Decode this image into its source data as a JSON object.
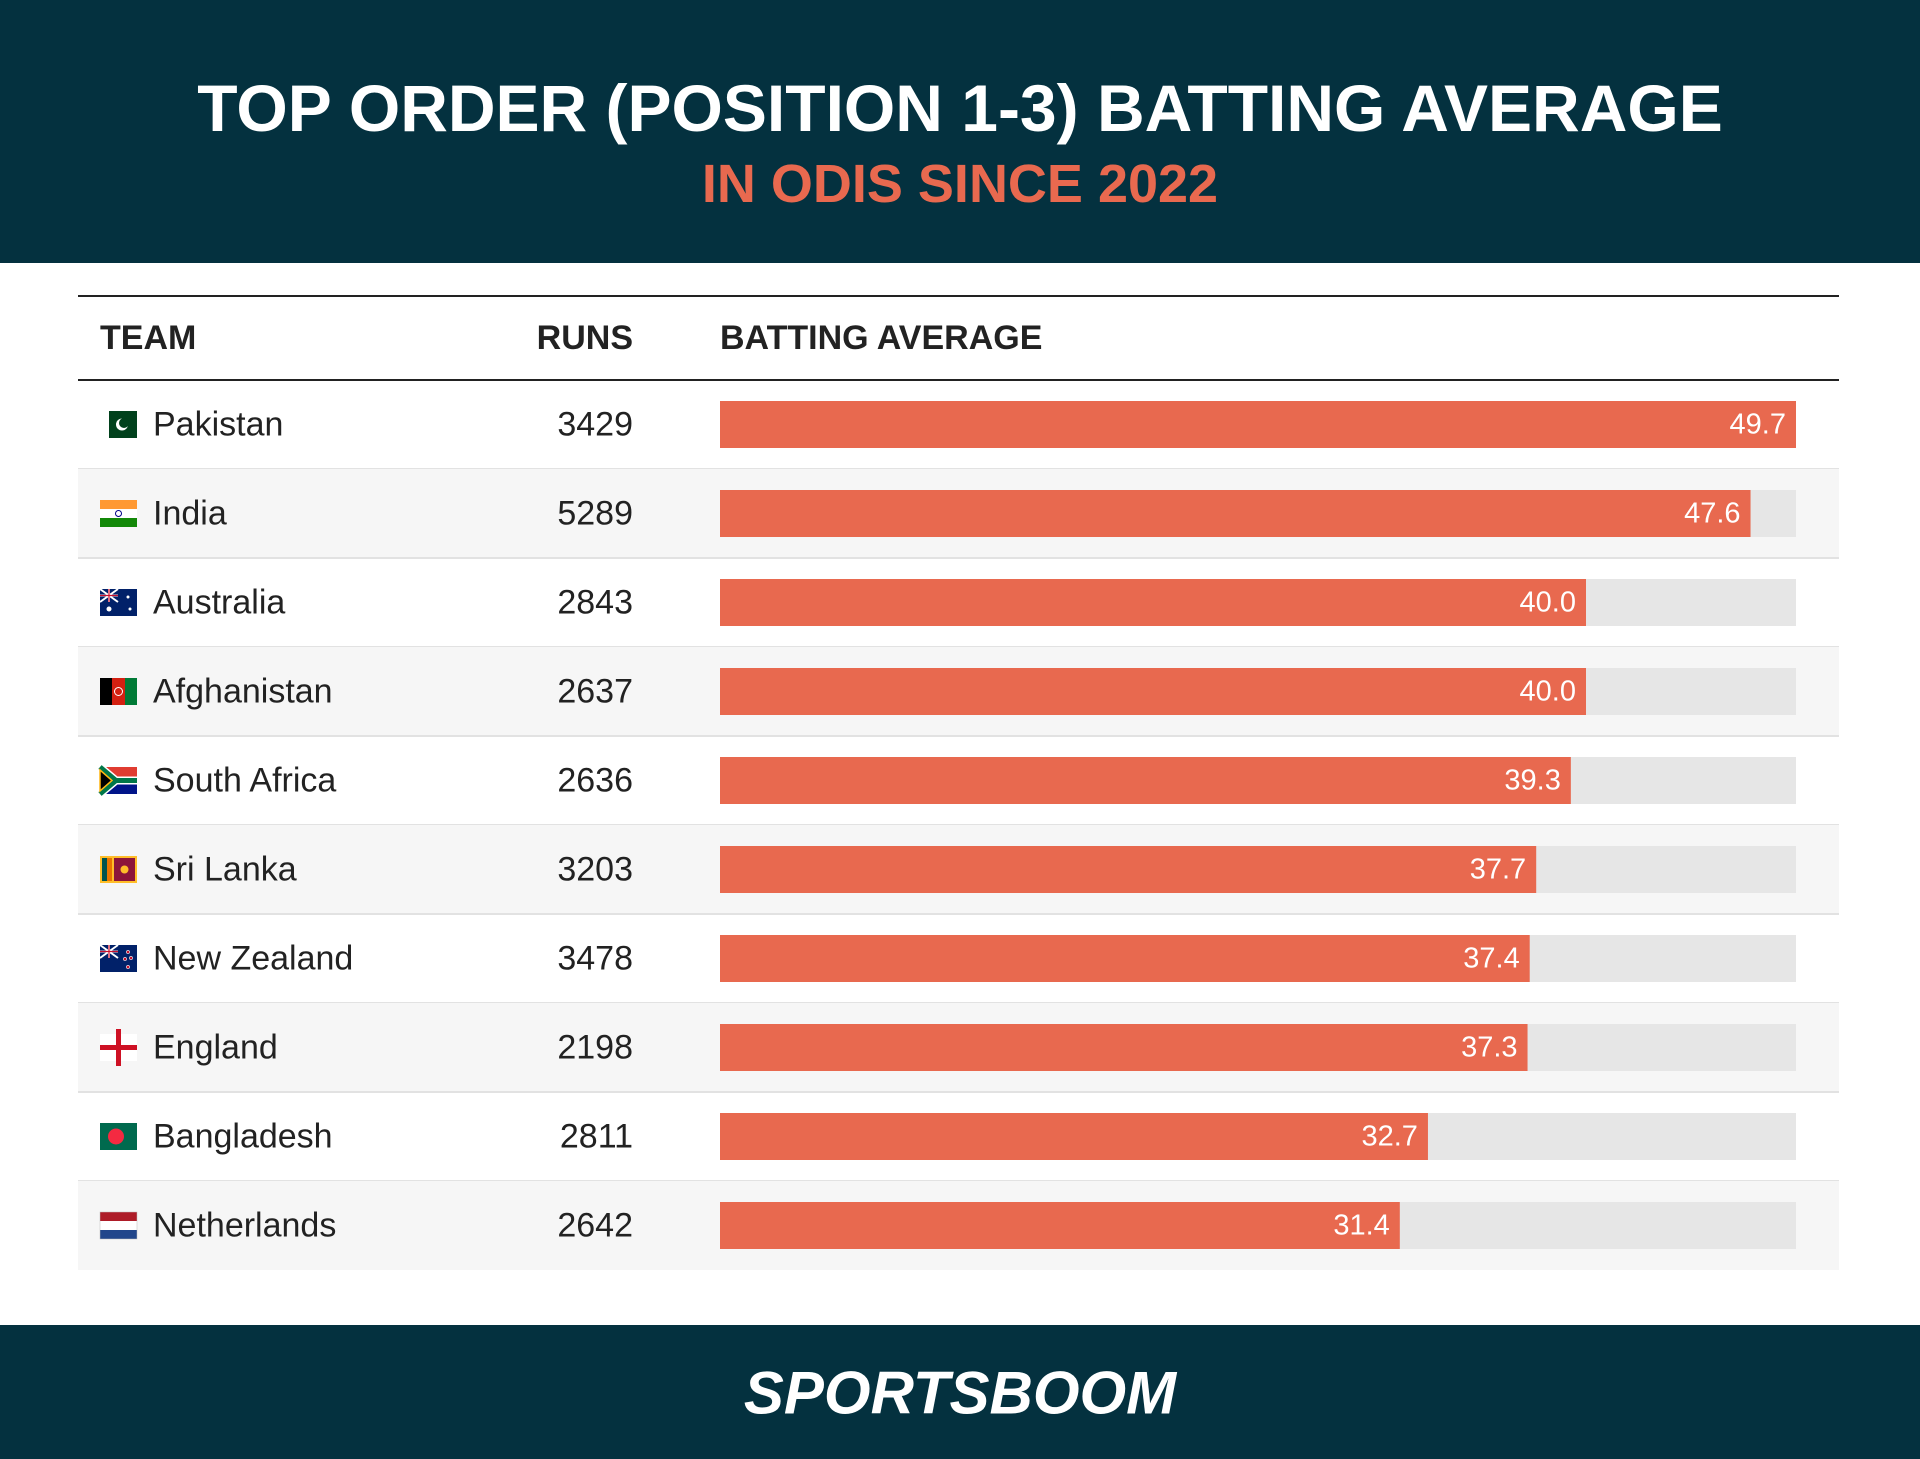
{
  "chart_data": {
    "type": "bar",
    "title": "TOP ORDER (POSITION 1-3) BATTING AVERAGE",
    "subtitle": "IN ODIS SINCE 2022",
    "columns": [
      "TEAM",
      "RUNS",
      "BATTING AVERAGE"
    ],
    "categories": [
      "Pakistan",
      "India",
      "Australia",
      "Afghanistan",
      "South Africa",
      "Sri Lanka",
      "New Zealand",
      "England",
      "Bangladesh",
      "Netherlands"
    ],
    "runs": [
      3429,
      5289,
      2843,
      2637,
      2636,
      3203,
      3478,
      2198,
      2811,
      2642
    ],
    "values": [
      49.7,
      47.6,
      40.0,
      40.0,
      39.3,
      37.7,
      37.4,
      37.3,
      32.7,
      31.4
    ],
    "value_labels": [
      "49.7",
      "47.6",
      "40.0",
      "40.0",
      "39.3",
      "37.7",
      "37.4",
      "37.3",
      "32.7",
      "31.4"
    ],
    "xlim": [
      0,
      49.7
    ],
    "color": "#e8694f",
    "track_color": "#e6e6e6"
  },
  "footer": {
    "brand": "SPORTSBOOM"
  }
}
